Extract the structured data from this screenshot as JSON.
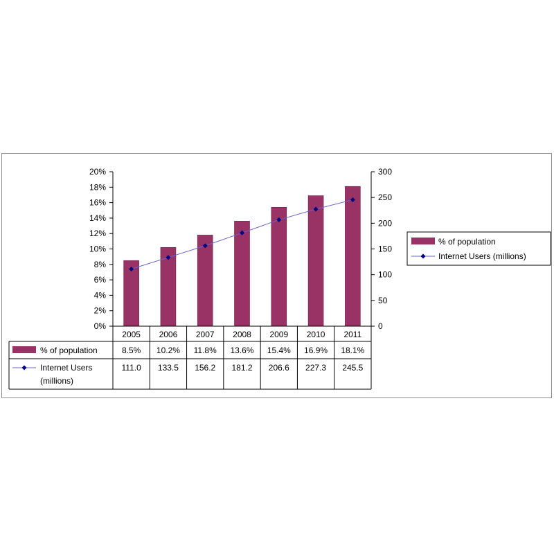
{
  "chart_data": {
    "type": "bar",
    "categories": [
      "2005",
      "2006",
      "2007",
      "2008",
      "2009",
      "2010",
      "2011"
    ],
    "series": [
      {
        "name": "% of population",
        "kind": "bar",
        "axis": "left",
        "values": [
          8.5,
          10.2,
          11.8,
          13.6,
          15.4,
          16.9,
          18.1
        ],
        "value_labels": [
          "8.5%",
          "10.2%",
          "11.8%",
          "13.6%",
          "15.4%",
          "16.9%",
          "18.1%"
        ]
      },
      {
        "name": "Internet Users  (millions)",
        "table_name_lines": [
          "Internet Users",
          "(millions)"
        ],
        "kind": "line",
        "axis": "right",
        "values": [
          111.0,
          133.5,
          156.2,
          181.2,
          206.6,
          227.3,
          245.5
        ],
        "value_labels": [
          "111.0",
          "133.5",
          "156.2",
          "181.2",
          "206.6",
          "227.3",
          "245.5"
        ]
      }
    ],
    "y_left": {
      "ylim": [
        0,
        20
      ],
      "ticks": [
        "0%",
        "2%",
        "4%",
        "6%",
        "8%",
        "10%",
        "12%",
        "14%",
        "16%",
        "18%",
        "20%"
      ]
    },
    "y_right": {
      "ylim": [
        0,
        300
      ],
      "ticks": [
        "0",
        "50",
        "100",
        "150",
        "200",
        "250",
        "300"
      ]
    },
    "grid": false,
    "legend_position": "right",
    "data_table": true,
    "colors": {
      "bar": "#993366",
      "line": "#6666cc",
      "marker": "#000080",
      "axis": "#000000",
      "frame": "#8c8c8c"
    }
  }
}
